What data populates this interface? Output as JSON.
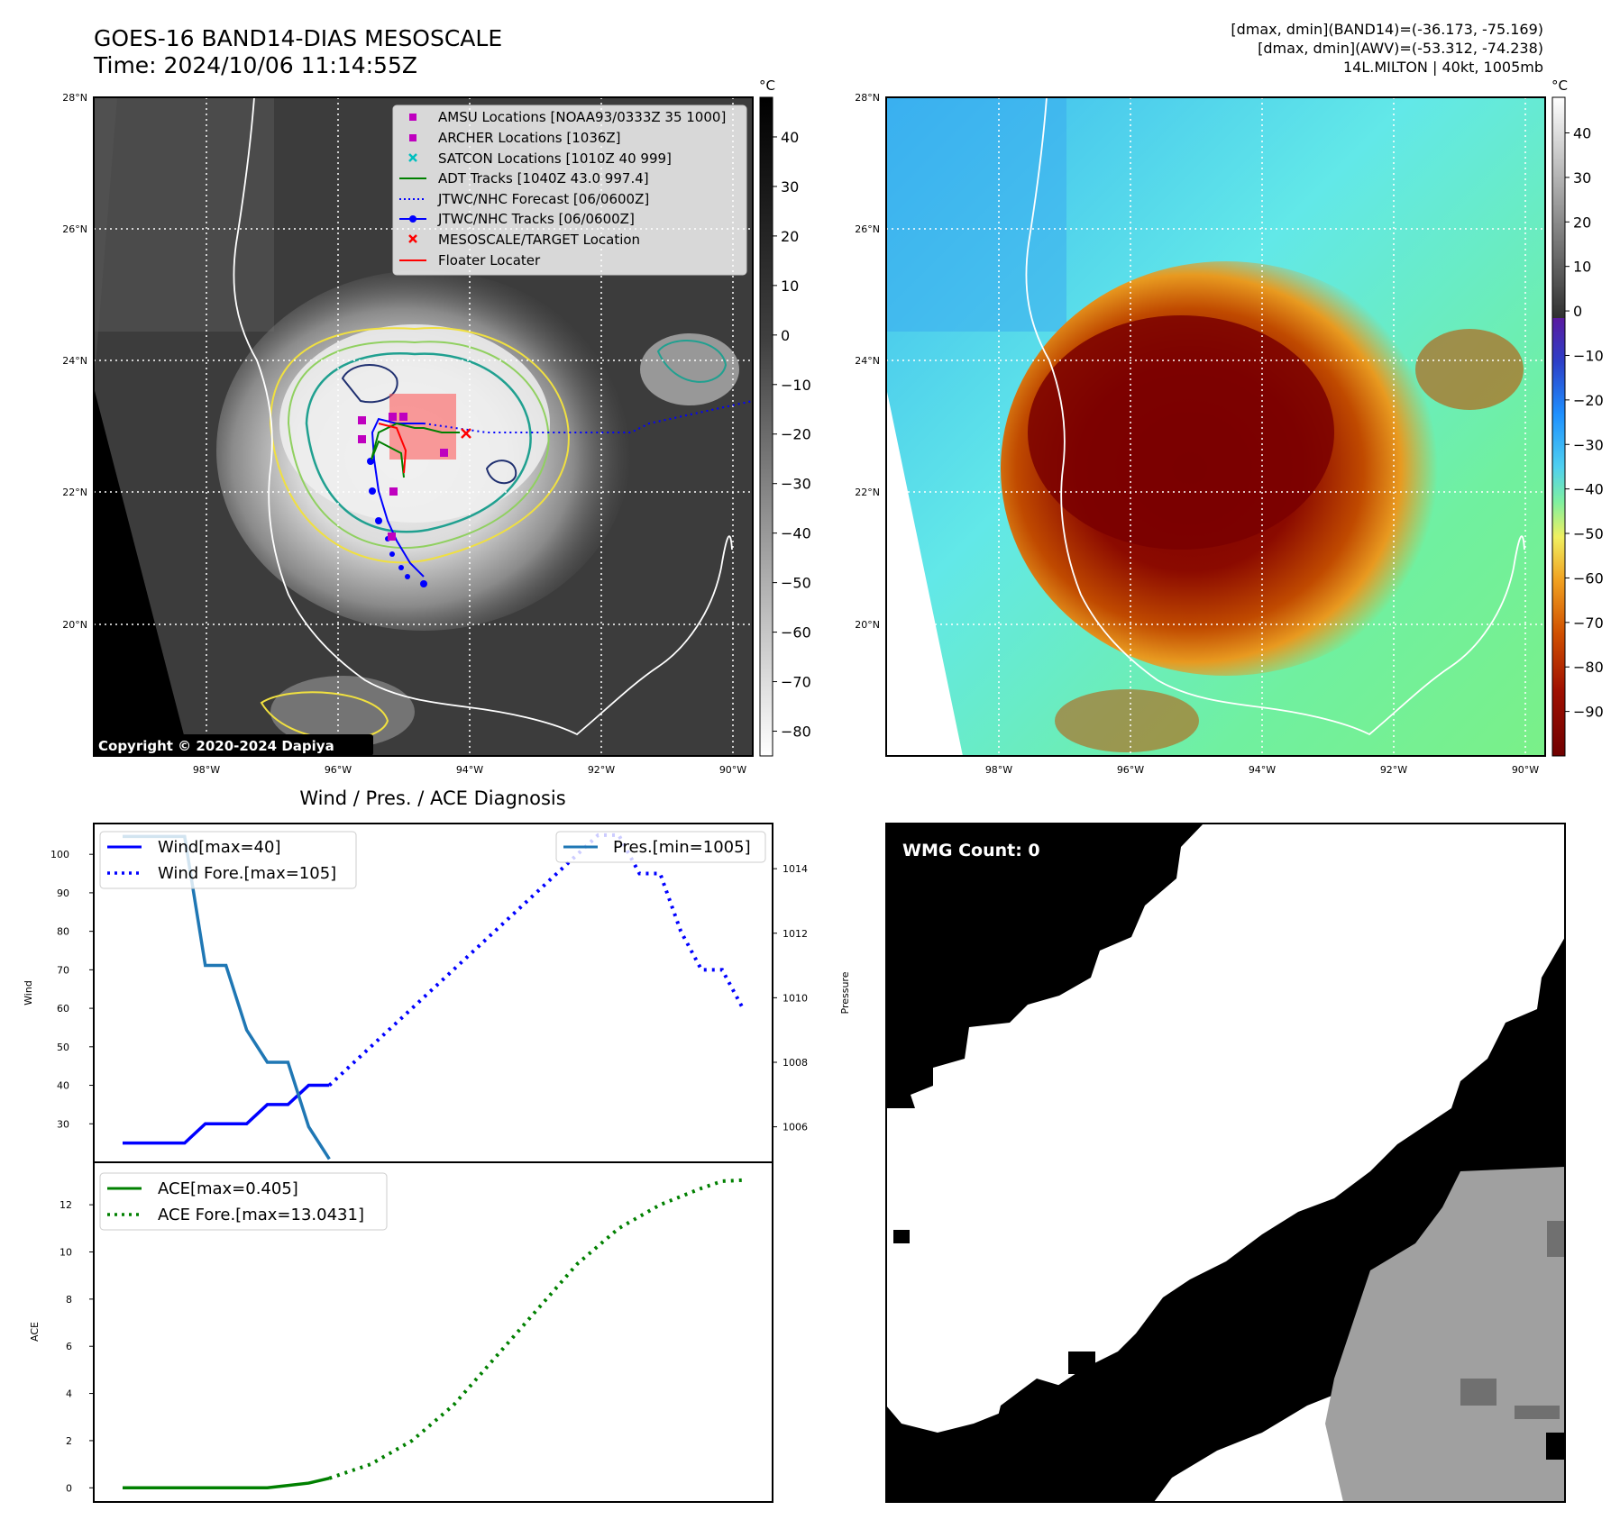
{
  "header": {
    "title_line1": "GOES-16 BAND14-DIAS MESOSCALE",
    "title_line2": "Time: 2024/10/06 11:14:55Z",
    "stats_line1": "[dmax, dmin](BAND14)=(-36.173, -75.169)",
    "stats_line2": "[dmax, dmin](AWV)=(-53.312, -74.238)",
    "stats_line3": "14L.MILTON | 40kt, 1005mb"
  },
  "map": {
    "lat_labels": [
      "28°N",
      "26°N",
      "24°N",
      "22°N",
      "20°N"
    ],
    "lon_labels": [
      "98°W",
      "96°W",
      "94°W",
      "92°W",
      "90°W"
    ],
    "copyright": "Copyright © 2020-2024 Dapiya",
    "legend": [
      {
        "label": "AMSU Locations [NOAA93/0333Z 35 1000]",
        "marker": "square",
        "color": "#bf00bf"
      },
      {
        "label": "ARCHER Locations [1036Z]",
        "marker": "square",
        "color": "#bf00bf"
      },
      {
        "label": "SATCON Locations [1010Z 40 999]",
        "marker": "x",
        "color": "#00bfbf"
      },
      {
        "label": "ADT Tracks [1040Z 43.0 997.4]",
        "marker": "line",
        "color": "#008000"
      },
      {
        "label": "JTWC/NHC Forecast [06/0600Z]",
        "marker": "dotted",
        "color": "#0000ff"
      },
      {
        "label": "JTWC/NHC Tracks [06/0600Z]",
        "marker": "line-dot",
        "color": "#0000ff"
      },
      {
        "label": "MESOSCALE/TARGET Location",
        "marker": "x",
        "color": "#ff0000"
      },
      {
        "label": "Floater Locater",
        "marker": "line",
        "color": "#ff0000"
      }
    ]
  },
  "colorbar_gray": {
    "unit": "°C",
    "ticks": [
      "40",
      "30",
      "20",
      "10",
      "0",
      "−10",
      "−20",
      "−30",
      "−40",
      "−50",
      "−60",
      "−70",
      "−80"
    ]
  },
  "colorbar_color": {
    "unit": "°C",
    "ticks": [
      "40",
      "30",
      "20",
      "10",
      "0",
      "−10",
      "−20",
      "−30",
      "−40",
      "−50",
      "−60",
      "−70",
      "−80",
      "−90"
    ]
  },
  "diagnosis": {
    "title": "Wind / Pres. / ACE Diagnosis",
    "wind_ylabel": "Wind",
    "pres_ylabel": "Pressure",
    "ace_ylabel": "ACE",
    "wind_ticks": [
      "100",
      "90",
      "80",
      "70",
      "60",
      "50",
      "40",
      "30"
    ],
    "pres_ticks": [
      "1014",
      "1012",
      "1010",
      "1008",
      "1006"
    ],
    "ace_ticks": [
      "12",
      "10",
      "8",
      "6",
      "4",
      "2",
      "0"
    ],
    "legend_wind": "Wind[max=40]",
    "legend_wind_fore": "Wind Fore.[max=105]",
    "legend_pres": "Pres.[min=1005]",
    "legend_ace": "ACE[max=0.405]",
    "legend_ace_fore": "ACE Fore.[max=13.0431]"
  },
  "wmg": {
    "label": "WMG Count: 0"
  },
  "chart_data": [
    {
      "type": "line",
      "title": "Wind / Pres. / ACE Diagnosis",
      "ylabel": "Wind",
      "ylim": [
        20,
        108
      ],
      "x": [
        0,
        1,
        2,
        3,
        4,
        5,
        6,
        7,
        8,
        9,
        10,
        11,
        12,
        13,
        14,
        15,
        16,
        17,
        18,
        19,
        20,
        21,
        22,
        23,
        24,
        25,
        26,
        27,
        28,
        29,
        30
      ],
      "series": [
        {
          "name": "Wind[max=40]",
          "x": [
            0,
            1,
            2,
            3,
            4,
            5,
            6,
            7,
            8,
            9,
            10
          ],
          "values": [
            25,
            25,
            25,
            25,
            30,
            30,
            30,
            35,
            35,
            40,
            40
          ]
        },
        {
          "name": "Wind Fore.[max=105]",
          "x": [
            10,
            11,
            12,
            13,
            14,
            15,
            16,
            17,
            18,
            19,
            20,
            21,
            22,
            23,
            24,
            25,
            26,
            27,
            28,
            29,
            30
          ],
          "values": [
            40,
            45,
            50,
            55,
            60,
            65,
            70,
            75,
            80,
            85,
            90,
            95,
            100,
            105,
            105,
            95,
            95,
            80,
            70,
            70,
            60
          ]
        }
      ]
    },
    {
      "type": "line",
      "ylabel": "Pressure",
      "ylim": [
        1004.9,
        1015.4
      ],
      "series": [
        {
          "name": "Pres.[min=1005]",
          "x": [
            0,
            1,
            2,
            3,
            4,
            5,
            6,
            7,
            8,
            9,
            10
          ],
          "values": [
            1015,
            1015,
            1015,
            1015,
            1011,
            1011,
            1009,
            1008,
            1008,
            1006,
            1005
          ]
        }
      ]
    },
    {
      "type": "line",
      "ylabel": "ACE",
      "ylim": [
        -0.6,
        13.8
      ],
      "series": [
        {
          "name": "ACE[max=0.405]",
          "x": [
            0,
            2,
            4,
            7,
            9,
            10
          ],
          "values": [
            0,
            0,
            0,
            0,
            0.2,
            0.405
          ]
        },
        {
          "name": "ACE Fore.[max=13.0431]",
          "x": [
            10,
            12,
            14,
            16,
            18,
            20,
            22,
            24,
            26,
            28,
            29,
            30
          ],
          "values": [
            0.405,
            1.0,
            2.0,
            3.5,
            5.5,
            7.5,
            9.5,
            11.0,
            12.0,
            12.7,
            13.0,
            13.0431
          ]
        }
      ]
    }
  ]
}
